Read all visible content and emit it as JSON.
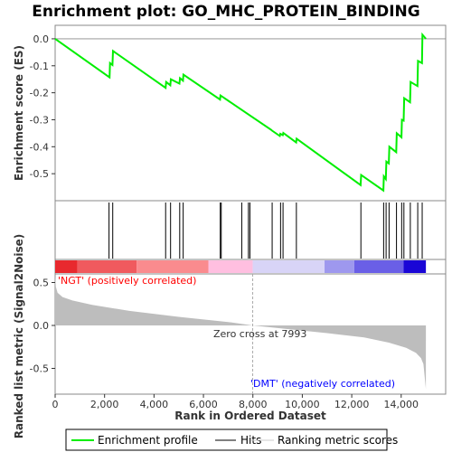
{
  "chart_data": {
    "type": "line",
    "title": "Enrichment plot: GO_MHC_PROTEIN_BINDING",
    "es_panel": {
      "ylabel": "Enrichment score (ES)",
      "ylim": [
        -0.6,
        0.05
      ],
      "yticks": [
        0.0,
        -0.1,
        -0.2,
        -0.3,
        -0.4,
        -0.5
      ],
      "ytick_labels": [
        "0.0",
        "-0.1",
        "-0.2",
        "-0.3",
        "-0.4",
        "-0.5"
      ],
      "series_name": "Enrichment profile",
      "color": "#00ff00",
      "x": [
        0,
        2200,
        2220,
        2320,
        2340,
        4470,
        4490,
        4660,
        4680,
        5030,
        5050,
        5170,
        5190,
        6670,
        6690,
        8750,
        8770,
        9090,
        9110,
        9210,
        9230,
        9750,
        9770,
        12360,
        12380,
        13280,
        13300,
        13380,
        13400,
        13500,
        13520,
        13800,
        13820,
        14010,
        14030,
        14100,
        14120,
        14360,
        14380,
        14660,
        14680,
        14840,
        14860,
        15000
      ],
      "y": [
        0.0,
        -0.143,
        -0.09,
        -0.097,
        -0.045,
        -0.182,
        -0.16,
        -0.172,
        -0.15,
        -0.166,
        -0.146,
        -0.155,
        -0.133,
        -0.225,
        -0.21,
        -0.338,
        -0.34,
        -0.36,
        -0.352,
        -0.357,
        -0.349,
        -0.384,
        -0.37,
        -0.542,
        -0.505,
        -0.562,
        -0.51,
        -0.52,
        -0.455,
        -0.462,
        -0.4,
        -0.42,
        -0.35,
        -0.365,
        -0.3,
        -0.303,
        -0.22,
        -0.235,
        -0.16,
        -0.175,
        -0.082,
        -0.09,
        0.015,
        0.0
      ]
    },
    "hits": [
      2180,
      2330,
      4470,
      4670,
      5040,
      5180,
      6680,
      6720,
      7550,
      7820,
      7880,
      8780,
      9120,
      9220,
      9760,
      12370,
      13290,
      13390,
      13510,
      13810,
      14020,
      14110,
      14370,
      14670,
      14850
    ],
    "ranked_panel": {
      "ylabel": "Ranked list metric (Signal2Noise)",
      "xlabel": "Rank in Ordered Dataset",
      "ylim": [
        -0.8,
        0.6
      ],
      "yticks": [
        0.5,
        0.0,
        -0.5
      ],
      "ytick_labels": [
        "0.5",
        "0.0",
        "-0.5"
      ],
      "xlim": [
        0,
        15800
      ],
      "xticks": [
        0,
        2000,
        4000,
        6000,
        8000,
        10000,
        12000,
        14000
      ],
      "xtick_labels": [
        "0",
        "2,000",
        "4,000",
        "6,000",
        "8,000",
        "10,000",
        "12,000",
        "14,000"
      ],
      "metric_x": [
        0,
        30,
        100,
        300,
        700,
        1500,
        3000,
        5000,
        7000,
        7993,
        9000,
        11000,
        12500,
        13500,
        14200,
        14600,
        14800,
        14900,
        15000
      ],
      "metric_y": [
        0.58,
        0.45,
        0.38,
        0.33,
        0.29,
        0.24,
        0.17,
        0.1,
        0.04,
        0.0,
        -0.03,
        -0.09,
        -0.14,
        -0.2,
        -0.26,
        -0.32,
        -0.38,
        -0.45,
        -0.74
      ],
      "zero_cross_label": "Zero cross at 7993",
      "pos_label": "'NGT' (positively correlated)",
      "neg_label": "'DMT' (negatively correlated)",
      "pos_color": "#ff0000",
      "neg_color": "#0000ff"
    },
    "n_genes": 15000,
    "zero_cross": 7993,
    "color_bar": [
      {
        "from": 0,
        "to": 900,
        "color": "#e8292e"
      },
      {
        "from": 900,
        "to": 3300,
        "color": "#f05a5e"
      },
      {
        "from": 3300,
        "to": 6200,
        "color": "#fa8b8e"
      },
      {
        "from": 6200,
        "to": 7993,
        "color": "#ffbfe0"
      },
      {
        "from": 7993,
        "to": 10900,
        "color": "#d8d4f7"
      },
      {
        "from": 10900,
        "to": 12100,
        "color": "#9e98ee"
      },
      {
        "from": 12100,
        "to": 14100,
        "color": "#6a5fe6"
      },
      {
        "from": 14100,
        "to": 15000,
        "color": "#1a06d6"
      }
    ],
    "legend": {
      "items": [
        "Enrichment profile",
        "Hits",
        "Ranking metric scores"
      ]
    }
  }
}
